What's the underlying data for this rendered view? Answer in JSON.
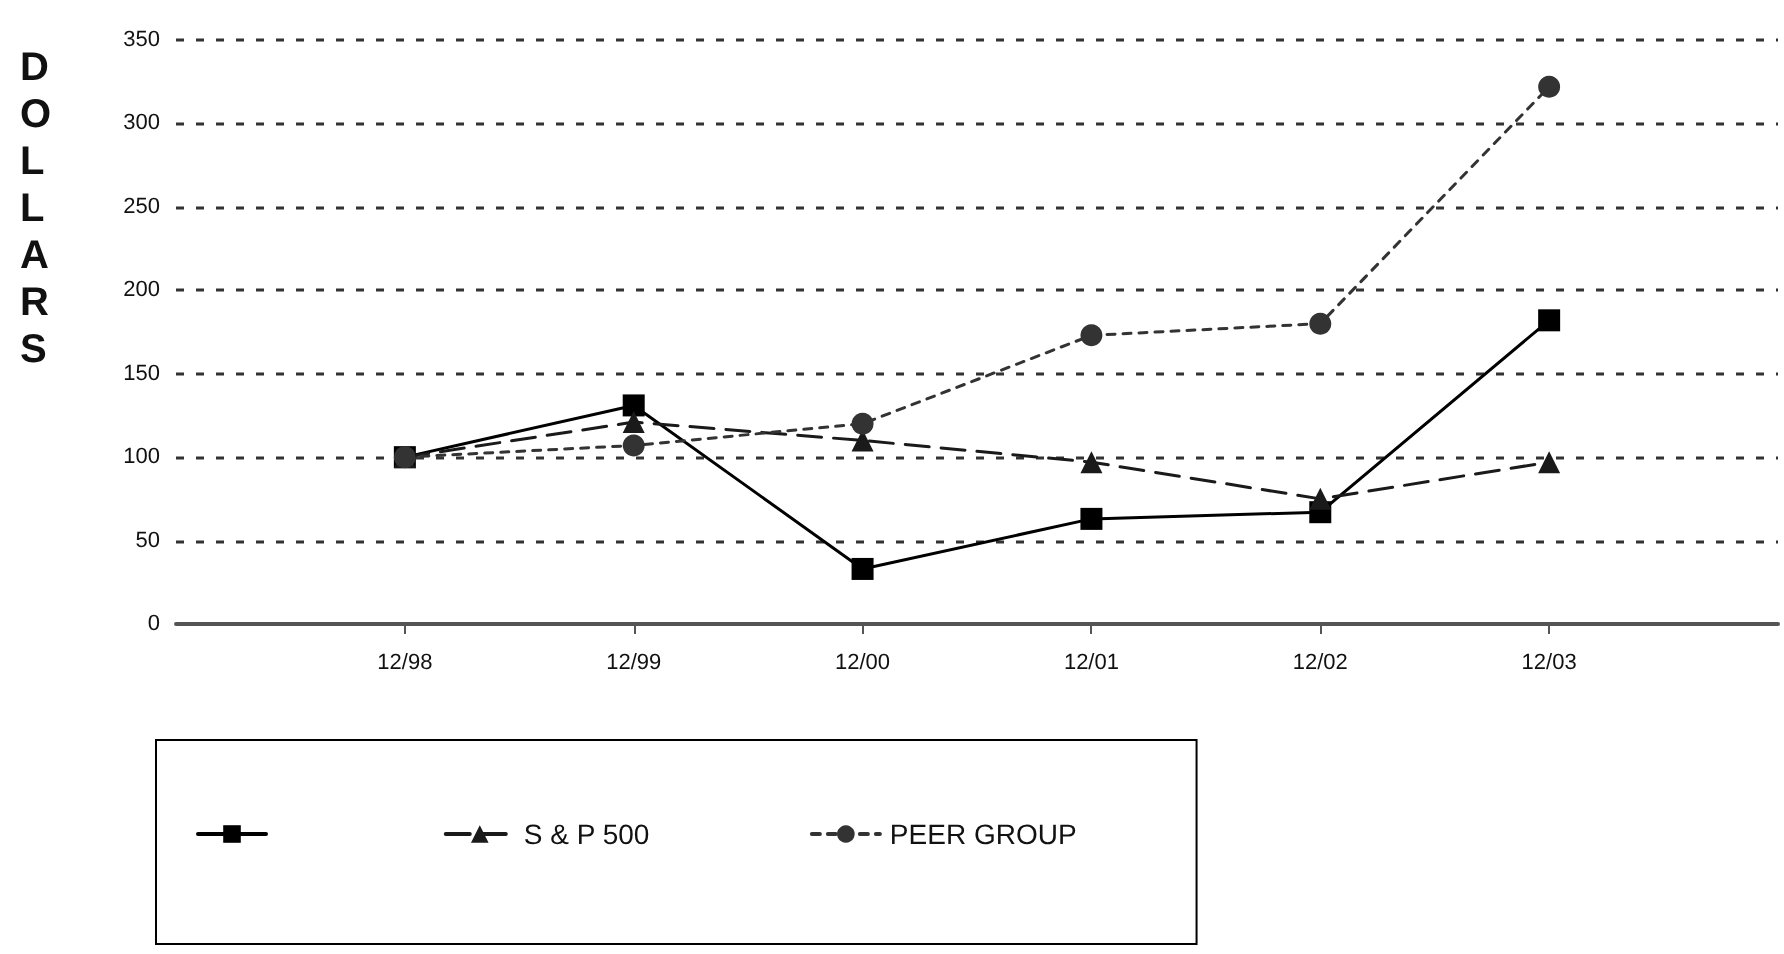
{
  "chart_data": {
    "type": "line",
    "ylabel": "DOLLARS",
    "categories": [
      null,
      "12/98",
      "12/99",
      "12/00",
      "12/01",
      "12/02",
      "12/03",
      null
    ],
    "series": [
      {
        "color": "#000000",
        "marker": "square",
        "line_style": "solid",
        "values": [
          null,
          100,
          131,
          33,
          63,
          67,
          182,
          null
        ]
      },
      {
        "name": "S & P 500",
        "color": "#1a1a1a",
        "marker": "triangle",
        "line_style": "dashed",
        "values": [
          null,
          100,
          121,
          110,
          97,
          75,
          97,
          null
        ]
      },
      {
        "name": "PEER GROUP",
        "color": "#333333",
        "marker": "circle",
        "line_style": "dotted",
        "values": [
          null,
          100,
          107,
          120,
          173,
          180,
          322,
          null
        ]
      }
    ],
    "ylim": [
      0,
      350
    ],
    "yticks": [
      0,
      50,
      100,
      150,
      200,
      250,
      300,
      350
    ],
    "grid": "y",
    "legend": "bottom"
  }
}
